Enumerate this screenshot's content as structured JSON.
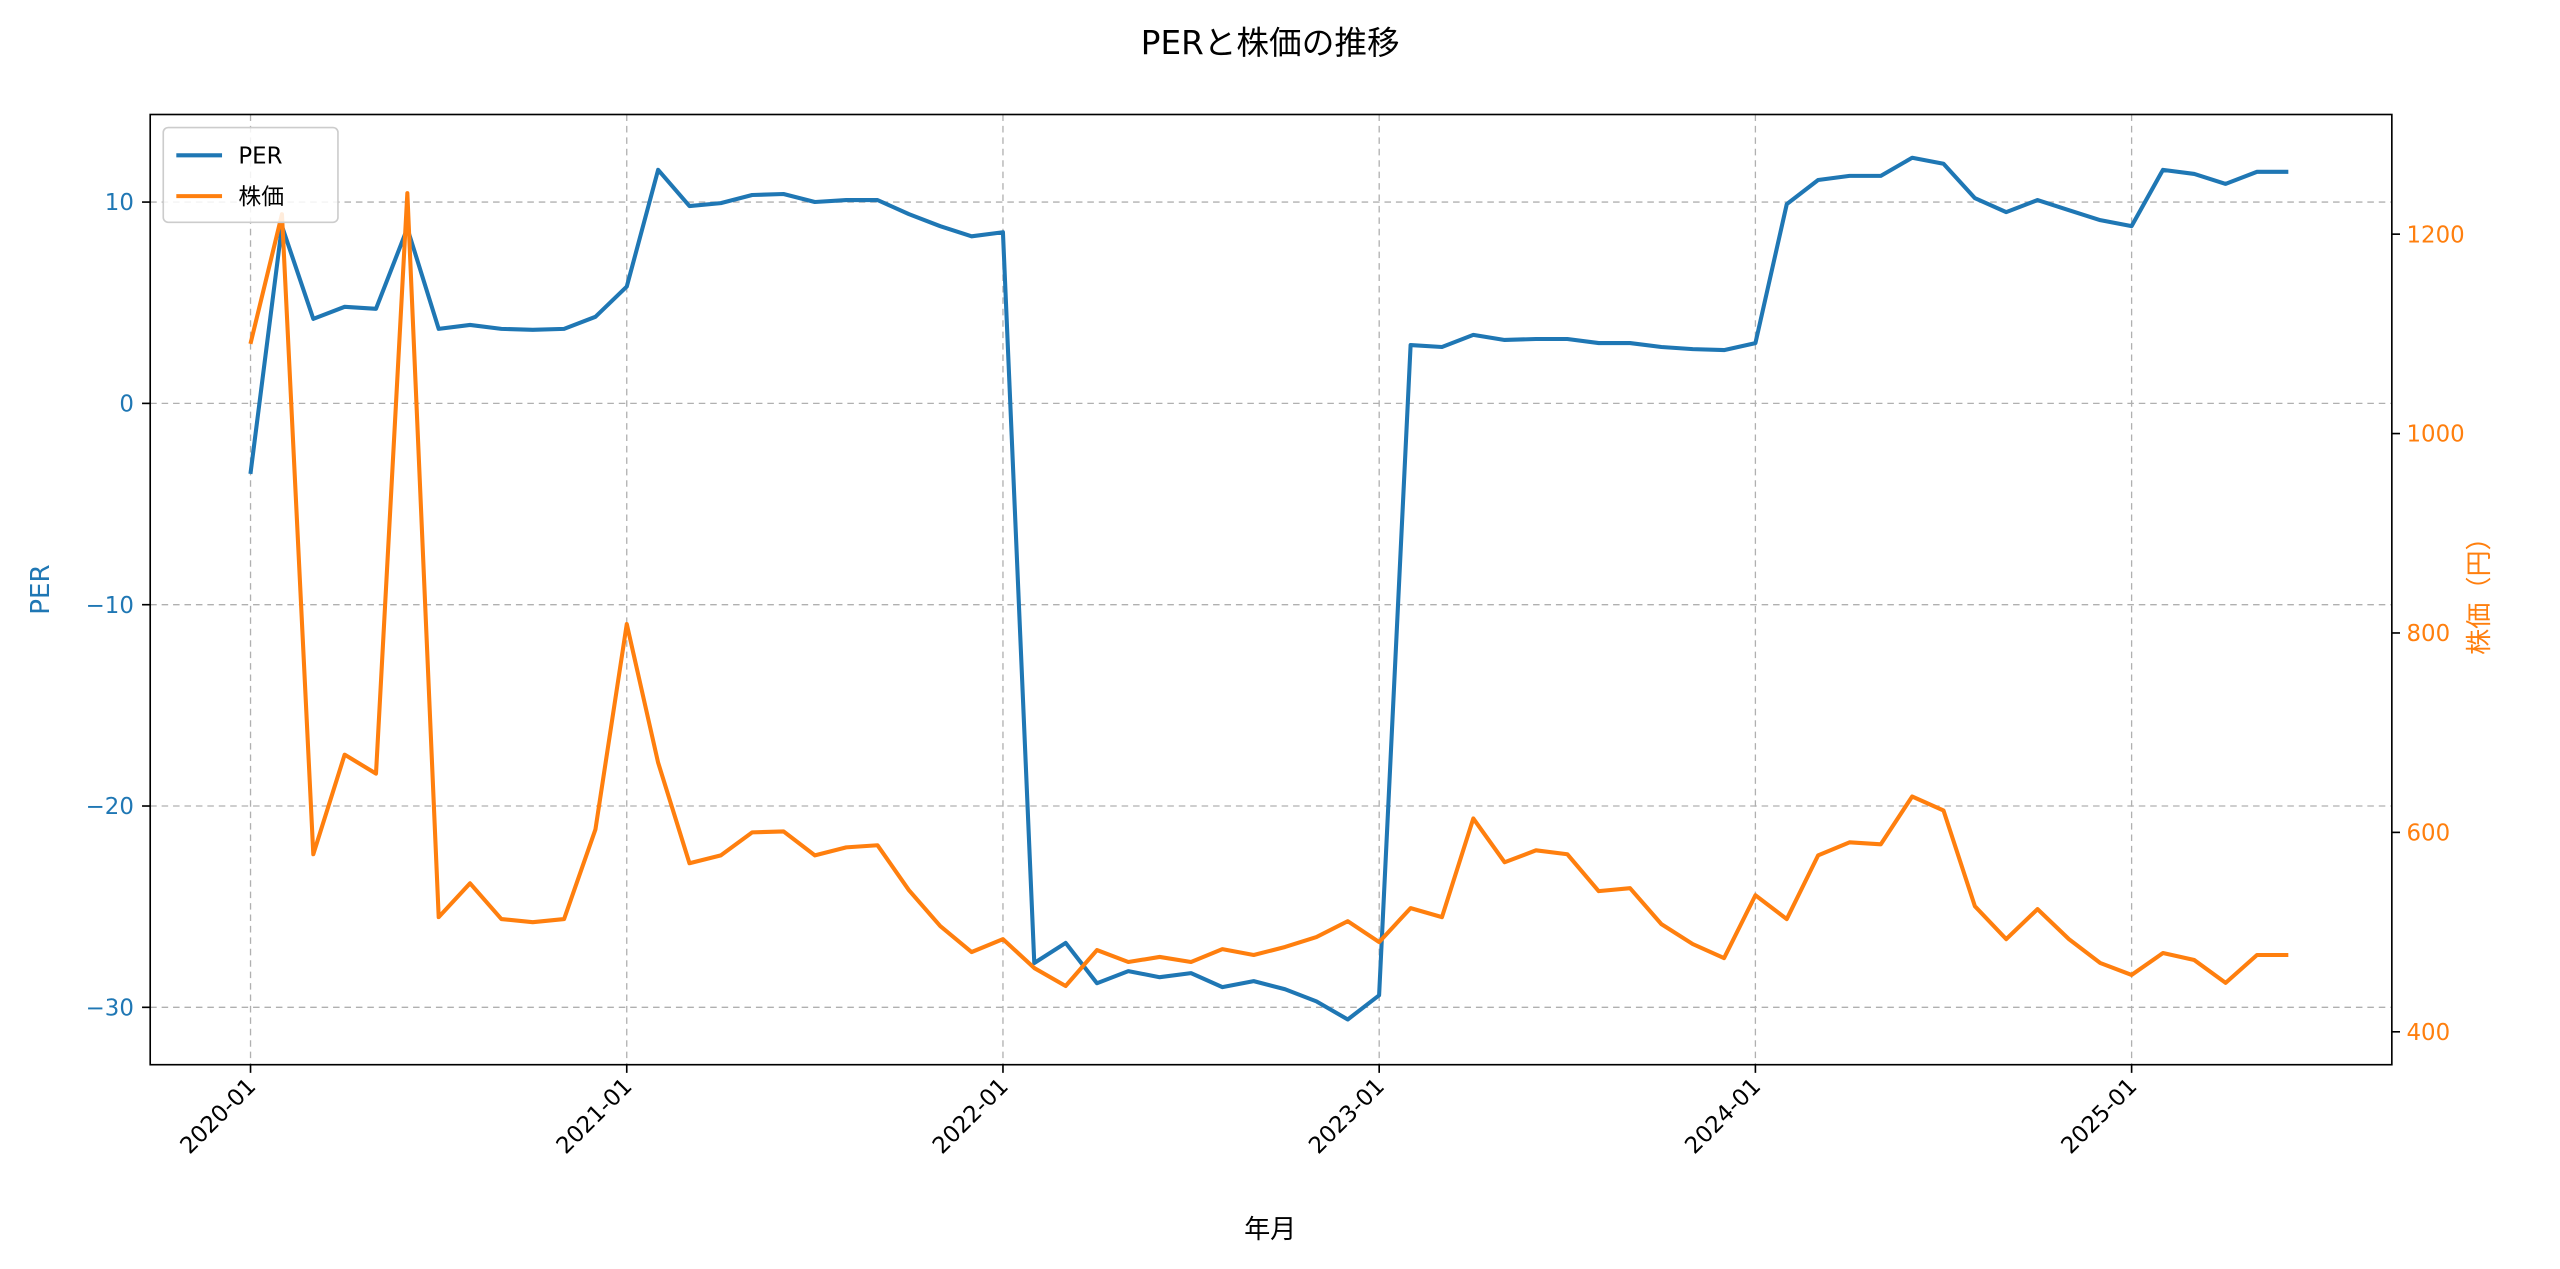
{
  "chart_data": {
    "type": "line",
    "title": "PERと株価の推移",
    "xlabel": "年月",
    "ylabel_left": "PER",
    "ylabel_right": "株価（円）",
    "x_start": "2020-01",
    "x_tick_labels": [
      "2020-01",
      "2021-01",
      "2022-01",
      "2023-01",
      "2024-01",
      "2025-01"
    ],
    "x_tick_month_index": [
      0,
      12,
      24,
      36,
      48,
      60
    ],
    "xlim_month_index": [
      -3.2,
      68.3
    ],
    "y_left_ticks": [
      10,
      0,
      -10,
      -20,
      -30
    ],
    "y_left_tick_labels": [
      "10",
      "0",
      "−10",
      "−20",
      "−30"
    ],
    "ylim_left": [
      -32.85,
      14.35
    ],
    "y_right_ticks": [
      1200,
      1000,
      800,
      600,
      400
    ],
    "y_right_tick_labels": [
      "1200",
      "1000",
      "800",
      "600",
      "400"
    ],
    "ylim_right": [
      367,
      1320
    ],
    "grid": true,
    "legend_position": "top-left",
    "colors": {
      "PER": "#1f77b4",
      "price": "#ff7f0e"
    },
    "series": [
      {
        "name": "PER",
        "axis": "left",
        "values": [
          -3.5,
          8.8,
          4.2,
          4.8,
          4.7,
          8.7,
          3.7,
          3.9,
          3.7,
          3.65,
          3.7,
          4.3,
          5.8,
          11.6,
          9.8,
          9.95,
          10.35,
          10.4,
          10.0,
          10.1,
          10.1,
          9.4,
          8.8,
          8.3,
          8.5,
          -27.8,
          -26.8,
          -28.8,
          -28.2,
          -28.5,
          -28.3,
          -29.0,
          -28.7,
          -29.1,
          -29.7,
          -30.6,
          -29.4,
          2.9,
          2.8,
          3.4,
          3.15,
          3.2,
          3.2,
          3.0,
          3.0,
          2.8,
          2.7,
          2.65,
          3.0,
          9.9,
          11.1,
          11.3,
          11.3,
          12.2,
          11.9,
          10.2,
          9.5,
          10.1,
          9.6,
          9.1,
          8.8,
          11.6,
          11.4,
          10.9,
          11.5,
          11.5
        ]
      },
      {
        "name": "株価",
        "axis": "right",
        "values": [
          1090,
          1220,
          578,
          678,
          659,
          1241,
          515,
          549,
          513,
          510,
          513,
          603,
          809,
          670,
          569,
          577,
          600,
          601,
          577,
          585,
          587,
          542,
          506,
          480,
          493,
          464,
          446,
          482,
          470,
          475,
          470,
          483,
          477,
          485,
          495,
          511,
          490,
          524,
          515,
          614,
          570,
          582,
          578,
          541,
          544,
          508,
          488,
          474,
          537,
          513,
          577,
          590,
          588,
          636,
          622,
          526,
          493,
          523,
          493,
          469,
          457,
          479,
          472,
          449,
          477,
          477
        ]
      }
    ]
  }
}
